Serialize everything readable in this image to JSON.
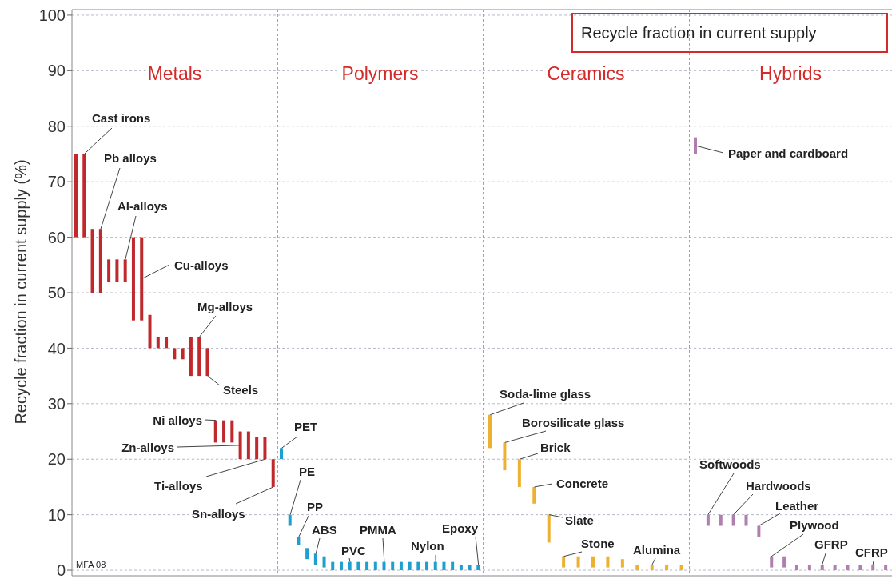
{
  "chart_data": [
    {
      "type": "bar",
      "title": "Metals",
      "ylabel": "Recycle fraction in current supply (%)",
      "categories": [
        null,
        null,
        null,
        null,
        null,
        null,
        null,
        null,
        null,
        null,
        null,
        null,
        null,
        null,
        null,
        null,
        null,
        null,
        null,
        null,
        null,
        null,
        null,
        null,
        null
      ],
      "base": [
        60,
        60,
        50,
        50,
        52,
        52,
        52,
        45,
        45,
        40,
        40,
        40,
        38,
        38,
        35,
        35,
        35,
        23,
        23,
        23,
        20,
        20,
        20,
        20,
        15
      ],
      "values": [
        15,
        15,
        11.5,
        11.5,
        4,
        4,
        4,
        15,
        15,
        6,
        2,
        2,
        2,
        2,
        7,
        7,
        5,
        4,
        4,
        4,
        5,
        5,
        4,
        4,
        5
      ],
      "color": "#c0282c",
      "ylim": [
        -1,
        101
      ],
      "yticks": [
        0,
        10,
        20,
        30,
        40,
        50,
        60,
        70,
        80,
        90,
        100
      ],
      "grid": "y",
      "tick_labels": "y",
      "annotations": [
        "Cast irons",
        "Pb alloys",
        "Al-alloys",
        "Cu-alloys",
        "Mg-alloys",
        "Steels",
        "Ni alloys",
        "Zn-alloys",
        "Ti-alloys",
        "Sn-alloys",
        "MFA 08"
      ]
    },
    {
      "type": "bar",
      "title": "Polymers",
      "categories": [
        null,
        null,
        null,
        null,
        null,
        null,
        null,
        null,
        null,
        null,
        null,
        null,
        null,
        null,
        null,
        null,
        null,
        null,
        null,
        null,
        null,
        null,
        null,
        null
      ],
      "base": [
        20,
        8,
        4.5,
        2,
        1,
        0.5,
        0,
        0,
        0,
        0,
        0,
        0,
        0,
        0,
        0,
        0,
        0,
        0,
        0,
        0,
        0,
        0,
        0,
        0
      ],
      "values": [
        2,
        2,
        1.5,
        2,
        2,
        2,
        1.5,
        1.5,
        1.5,
        1.5,
        1.5,
        1.5,
        1.5,
        1.5,
        1.5,
        1.5,
        1.5,
        1.5,
        1.5,
        1.5,
        1.5,
        1,
        1,
        1
      ],
      "color": "#1e9fd0",
      "ylim": [
        -1,
        101
      ],
      "yticks": [
        0,
        10,
        20,
        30,
        40,
        50,
        60,
        70,
        80,
        90,
        100
      ],
      "grid": "y",
      "tick_labels": false,
      "annotations": [
        "PET",
        "PE",
        "PP",
        "ABS",
        "PVC",
        "PMMA",
        "Nylon",
        "Epoxy"
      ]
    },
    {
      "type": "bar",
      "title": "Ceramics",
      "categories": [
        null,
        null,
        null,
        null,
        null,
        null,
        null,
        null,
        null,
        null,
        null,
        null,
        null,
        null
      ],
      "base": [
        22,
        18,
        15,
        12,
        5,
        0.5,
        0.5,
        0.5,
        0.5,
        0.5,
        0,
        0,
        0,
        0
      ],
      "values": [
        6,
        5,
        5,
        3,
        5,
        2,
        2,
        2,
        2,
        1.5,
        1,
        1,
        1,
        1
      ],
      "color": "#eeb030",
      "ylim": [
        -1,
        101
      ],
      "yticks": [
        0,
        10,
        20,
        30,
        40,
        50,
        60,
        70,
        80,
        90,
        100
      ],
      "grid": "y",
      "tick_labels": false,
      "annotations": [
        "Soda-lime glass",
        "Borosilicate glass",
        "Brick",
        "Concrete",
        "Slate",
        "Stone",
        "Alumina"
      ]
    },
    {
      "type": "bar",
      "title": "Hybrids",
      "categories": [
        null,
        null,
        null,
        null,
        null,
        null,
        null,
        null,
        null,
        null,
        null,
        null,
        null,
        null,
        null,
        null
      ],
      "base": [
        75,
        8,
        8,
        8,
        8,
        6,
        0.5,
        0.5,
        0,
        0,
        0,
        0,
        0,
        0,
        0,
        0
      ],
      "values": [
        3,
        2,
        2,
        2,
        2,
        2,
        2,
        2,
        1,
        1,
        1,
        1,
        1,
        1,
        1,
        1
      ],
      "color": "#b07fb0",
      "ylim": [
        -1,
        101
      ],
      "yticks": [
        0,
        10,
        20,
        30,
        40,
        50,
        60,
        70,
        80,
        90,
        100
      ],
      "grid": "y",
      "tick_labels": false,
      "annotations": [
        "Paper and cardboard",
        "Softwoods",
        "Hardwoods",
        "Leather",
        "Plywood",
        "GFRP",
        "CFRP",
        "Recycle fraction in current supply"
      ]
    }
  ]
}
